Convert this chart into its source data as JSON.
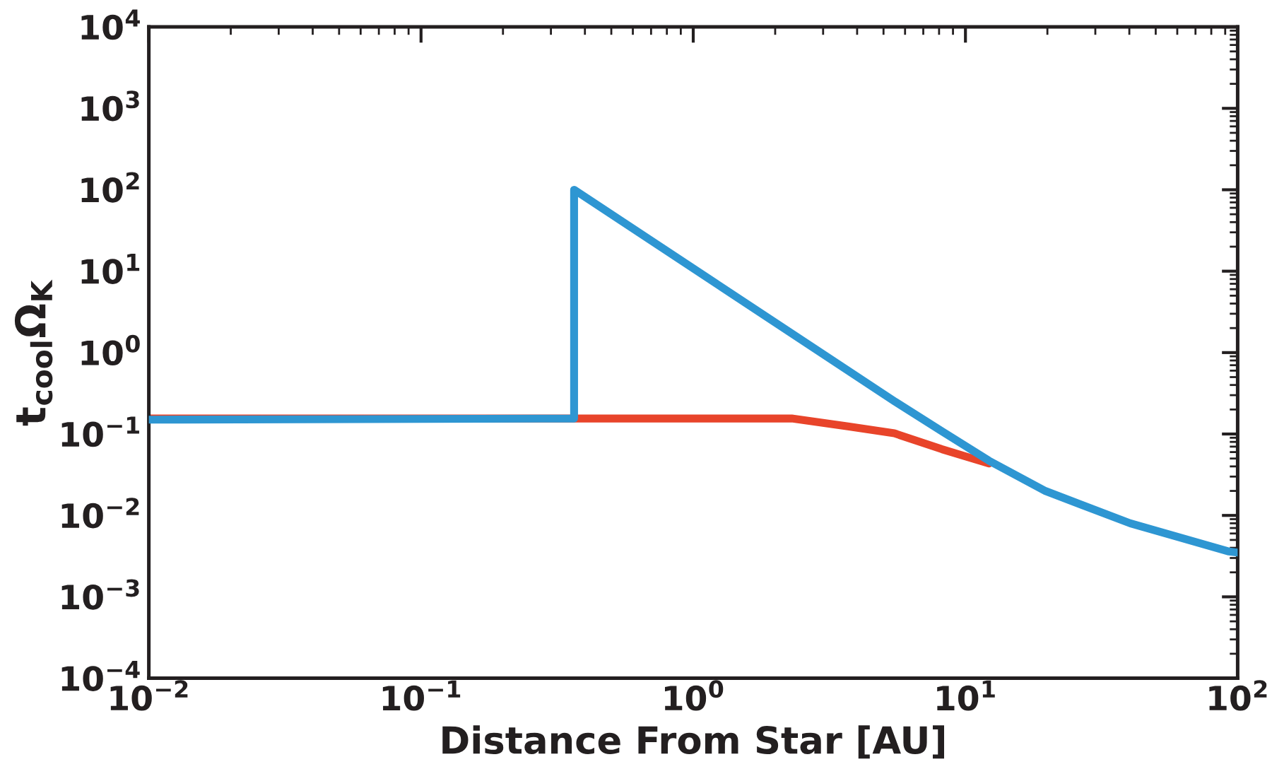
{
  "chart_data": {
    "type": "line",
    "xlabel": "Distance From Star [AU]",
    "ylabel": "t$_{cool}$Ω$_{K}$",
    "log": "xy",
    "xlim": [
      0.01,
      100
    ],
    "ylim": [
      0.0001,
      10000
    ],
    "xticks": [
      {
        "value": 0.01,
        "label": "10$^{−2}$"
      },
      {
        "value": 0.1,
        "label": "10$^{−1}$"
      },
      {
        "value": 1,
        "label": "10$^{0}$"
      },
      {
        "value": 10,
        "label": "10$^{1}$"
      },
      {
        "value": 100,
        "label": "10$^{2}$"
      }
    ],
    "yticks": [
      {
        "value": 0.0001,
        "label": "10$^{−4}$"
      },
      {
        "value": 0.001,
        "label": "10$^{−3}$"
      },
      {
        "value": 0.01,
        "label": "10$^{−2}$"
      },
      {
        "value": 0.1,
        "label": "10$^{−1}$"
      },
      {
        "value": 1,
        "label": "10$^{0}$"
      },
      {
        "value": 10,
        "label": "10$^{1}$"
      },
      {
        "value": 100,
        "label": "10$^{2}$"
      },
      {
        "value": 1000,
        "label": "10$^{3}$"
      },
      {
        "value": 10000,
        "label": "10$^{4}$"
      }
    ],
    "grid": false,
    "series": [
      {
        "color": "#e8442a",
        "x": [
          0.01,
          2.3,
          3.7,
          5.48,
          8.2,
          12.2
        ],
        "values": [
          0.155,
          0.155,
          0.124,
          0.102,
          0.065,
          0.0434
        ]
      },
      {
        "color": "#2e96d2",
        "x": [
          0.01,
          0.365,
          0.365,
          5.48,
          8.2,
          12.2,
          19.7,
          40.3,
          93,
          100
        ],
        "values": [
          0.15,
          0.155,
          100,
          0.253,
          0.108,
          0.047,
          0.0199,
          0.008,
          0.0036,
          0.0035
        ]
      }
    ]
  }
}
